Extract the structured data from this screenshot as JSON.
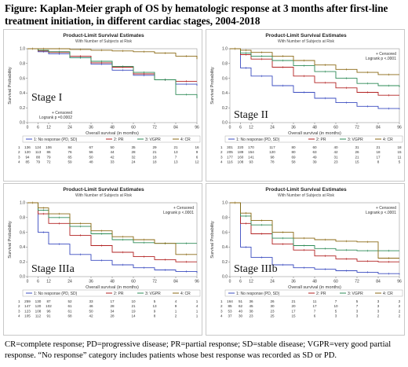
{
  "figure_title": "Figure: Kaplan-Meier graph of OS by hematologic response at 3 months after first-line treatment initiation, in different cardiac stages, 2004-2018",
  "footnote": "CR=complete response; PD=progressive disease; PR=partial response; SD=stable disease; VGPR=very good partial response. “No response” category includes patients whose best response was recorded as SD or PD.",
  "colors": {
    "no_response": "#3b4cc0",
    "pr": "#b22222",
    "vgpr": "#2e8b57",
    "cr": "#8b6914"
  },
  "chart_data": [
    {
      "type": "line",
      "stage_label": "Stage I",
      "title": "Product-Limit Survival Estimates",
      "subtitle": "With Number of Subjects at Risk",
      "xlabel": "Overall survival (in months)",
      "ylabel": "Survival Probability",
      "xticks": [
        0,
        6,
        12,
        24,
        36,
        48,
        60,
        72,
        84,
        96
      ],
      "yticks": [
        "0.0",
        "0.2",
        "0.4",
        "0.6",
        "0.8",
        "1.0"
      ],
      "xlim": [
        0,
        96
      ],
      "ylim": [
        0,
        1
      ],
      "legend_box": {
        "position": "bottom-left",
        "lines": [
          "+ Censored",
          "Logrank p =0.0002"
        ]
      },
      "series": [
        {
          "name": "1: No response (PD, SD)",
          "x": [
            0,
            6,
            12,
            24,
            36,
            48,
            60,
            72,
            84,
            96
          ],
          "y": [
            1.0,
            0.96,
            0.93,
            0.88,
            0.79,
            0.71,
            0.64,
            0.58,
            0.52,
            0.5
          ]
        },
        {
          "name": "2: PR",
          "x": [
            0,
            6,
            12,
            24,
            36,
            48,
            60,
            72,
            84,
            96
          ],
          "y": [
            1.0,
            0.97,
            0.95,
            0.9,
            0.81,
            0.75,
            0.66,
            0.58,
            0.56,
            0.56
          ]
        },
        {
          "name": "3: VGPR",
          "x": [
            0,
            6,
            12,
            24,
            36,
            48,
            60,
            72,
            84,
            96
          ],
          "y": [
            1.0,
            0.98,
            0.96,
            0.88,
            0.83,
            0.76,
            0.68,
            0.58,
            0.38,
            0.33
          ]
        },
        {
          "name": "4: CR",
          "x": [
            0,
            6,
            12,
            24,
            36,
            48,
            60,
            72,
            84,
            96
          ],
          "y": [
            1.0,
            1.0,
            1.0,
            0.99,
            0.98,
            0.97,
            0.96,
            0.94,
            0.9,
            0.86
          ]
        }
      ],
      "risk_table": [
        [
          "136",
          "124",
          "106",
          "84",
          "67",
          "50",
          "35",
          "29",
          "21",
          "16"
        ],
        [
          "120",
          "113",
          "86",
          "76",
          "56",
          "44",
          "28",
          "21",
          "13",
          "9"
        ],
        [
          "94",
          "88",
          "79",
          "65",
          "50",
          "42",
          "32",
          "18",
          "7",
          "6"
        ],
        [
          "85",
          "79",
          "72",
          "59",
          "48",
          "33",
          "24",
          "18",
          "13",
          "12"
        ]
      ]
    },
    {
      "type": "line",
      "stage_label": "Stage II",
      "title": "Product-Limit Survival Estimates",
      "subtitle": "With Number of Subjects at Risk",
      "xlabel": "Overall survival (in months)",
      "ylabel": "Survival Probability",
      "xticks": [
        0,
        6,
        12,
        24,
        36,
        48,
        60,
        72,
        84,
        96
      ],
      "yticks": [
        "0.0",
        "0.2",
        "0.4",
        "0.6",
        "0.8",
        "1.0"
      ],
      "xlim": [
        0,
        96
      ],
      "ylim": [
        0,
        1
      ],
      "legend_box": {
        "position": "top-right",
        "lines": [
          "+ Censored",
          "Logrank p <.0001"
        ]
      },
      "series": [
        {
          "name": "1: No response (PD, SD)",
          "x": [
            0,
            6,
            12,
            24,
            36,
            48,
            60,
            72,
            84,
            96
          ],
          "y": [
            1.0,
            0.74,
            0.63,
            0.5,
            0.41,
            0.33,
            0.27,
            0.22,
            0.19,
            0.18
          ]
        },
        {
          "name": "2: PR",
          "x": [
            0,
            6,
            12,
            24,
            36,
            48,
            60,
            72,
            84,
            96
          ],
          "y": [
            1.0,
            0.92,
            0.86,
            0.75,
            0.63,
            0.54,
            0.47,
            0.41,
            0.37,
            0.37
          ]
        },
        {
          "name": "3: VGPR",
          "x": [
            0,
            6,
            12,
            24,
            36,
            48,
            60,
            72,
            84,
            96
          ],
          "y": [
            1.0,
            0.94,
            0.9,
            0.84,
            0.77,
            0.69,
            0.6,
            0.53,
            0.5,
            0.48
          ]
        },
        {
          "name": "4: CR",
          "x": [
            0,
            6,
            12,
            24,
            36,
            48,
            60,
            72,
            84,
            96
          ],
          "y": [
            1.0,
            0.98,
            0.95,
            0.9,
            0.84,
            0.78,
            0.72,
            0.68,
            0.65,
            0.65
          ]
        }
      ],
      "risk_table": [
        [
          "301",
          "220",
          "170",
          "117",
          "80",
          "60",
          "40",
          "31",
          "21",
          "18"
        ],
        [
          "205",
          "189",
          "154",
          "120",
          "80",
          "63",
          "42",
          "26",
          "18",
          "15"
        ],
        [
          "177",
          "160",
          "141",
          "98",
          "69",
          "49",
          "31",
          "21",
          "17",
          "11"
        ],
        [
          "116",
          "108",
          "93",
          "78",
          "58",
          "39",
          "23",
          "15",
          "8",
          "5"
        ]
      ]
    },
    {
      "type": "line",
      "stage_label": "Stage IIIa",
      "title": "Product-Limit Survival Estimates",
      "subtitle": "With Number of Subjects at Risk",
      "xlabel": "Overall survival (in months)",
      "ylabel": "Survival Probability",
      "xticks": [
        0,
        6,
        12,
        24,
        36,
        48,
        60,
        72,
        84,
        96
      ],
      "yticks": [
        "0.0",
        "0.2",
        "0.4",
        "0.6",
        "0.8",
        "1.0"
      ],
      "xlim": [
        0,
        96
      ],
      "ylim": [
        0,
        1
      ],
      "legend_box": {
        "position": "top-right",
        "lines": [
          "+ Censored",
          "Logrank p <.0001"
        ]
      },
      "series": [
        {
          "name": "1: No response (PD, SD)",
          "x": [
            0,
            6,
            12,
            24,
            36,
            48,
            60,
            72,
            84,
            96
          ],
          "y": [
            1.0,
            0.6,
            0.44,
            0.3,
            0.22,
            0.16,
            0.12,
            0.09,
            0.07,
            0.05
          ]
        },
        {
          "name": "2: PR",
          "x": [
            0,
            6,
            12,
            24,
            36,
            48,
            60,
            72,
            84,
            96
          ],
          "y": [
            1.0,
            0.85,
            0.72,
            0.56,
            0.42,
            0.33,
            0.27,
            0.23,
            0.2,
            0.2
          ]
        },
        {
          "name": "3: VGPR",
          "x": [
            0,
            6,
            12,
            24,
            36,
            48,
            60,
            72,
            84,
            96
          ],
          "y": [
            1.0,
            0.9,
            0.8,
            0.68,
            0.58,
            0.5,
            0.46,
            0.45,
            0.45,
            0.45
          ]
        },
        {
          "name": "4: CR",
          "x": [
            0,
            6,
            12,
            24,
            36,
            48,
            60,
            72,
            84,
            96
          ],
          "y": [
            1.0,
            0.93,
            0.85,
            0.72,
            0.62,
            0.54,
            0.5,
            0.45,
            0.3,
            0.3
          ]
        }
      ],
      "risk_table": [
        [
          "259",
          "130",
          "87",
          "52",
          "33",
          "17",
          "10",
          "5",
          "4",
          "1"
        ],
        [
          "147",
          "120",
          "102",
          "61",
          "46",
          "28",
          "21",
          "13",
          "9",
          "4"
        ],
        [
          "123",
          "108",
          "96",
          "61",
          "50",
          "34",
          "19",
          "9",
          "1",
          "1"
        ],
        [
          "105",
          "112",
          "91",
          "68",
          "42",
          "28",
          "14",
          "8",
          "2",
          "1"
        ]
      ]
    },
    {
      "type": "line",
      "stage_label": "Stage IIIb",
      "title": "Product-Limit Survival Estimates",
      "subtitle": "With Number of Subjects at Risk",
      "xlabel": "Overall survival (in months)",
      "ylabel": "Survival Probability",
      "xticks": [
        0,
        6,
        12,
        24,
        36,
        48,
        60,
        72,
        84,
        96
      ],
      "yticks": [
        "0.0",
        "0.2",
        "0.4",
        "0.6",
        "0.8",
        "1.0"
      ],
      "xlim": [
        0,
        96
      ],
      "ylim": [
        0,
        1
      ],
      "legend_box": {
        "position": "top-right",
        "lines": [
          "+ Censored",
          "Logrank p <.0001"
        ]
      },
      "series": [
        {
          "name": "1: No response (PD, SD)",
          "x": [
            0,
            6,
            12,
            24,
            36,
            48,
            60,
            72,
            84,
            96
          ],
          "y": [
            1.0,
            0.4,
            0.26,
            0.16,
            0.12,
            0.1,
            0.08,
            0.06,
            0.04,
            0.03
          ]
        },
        {
          "name": "2: PR",
          "x": [
            0,
            6,
            12,
            24,
            36,
            48,
            60,
            72,
            84,
            96
          ],
          "y": [
            1.0,
            0.72,
            0.58,
            0.44,
            0.36,
            0.28,
            0.24,
            0.21,
            0.2,
            0.2
          ]
        },
        {
          "name": "3: VGPR",
          "x": [
            0,
            6,
            12,
            24,
            36,
            48,
            60,
            72,
            84,
            96
          ],
          "y": [
            1.0,
            0.82,
            0.7,
            0.52,
            0.42,
            0.38,
            0.36,
            0.35,
            0.35,
            0.35
          ]
        },
        {
          "name": "4: CR",
          "x": [
            0,
            6,
            12,
            24,
            36,
            48,
            60,
            72,
            84,
            96
          ],
          "y": [
            1.0,
            0.86,
            0.76,
            0.6,
            0.52,
            0.5,
            0.48,
            0.47,
            0.25,
            0.25
          ]
        }
      ],
      "risk_table": [
        [
          "164",
          "51",
          "36",
          "26",
          "21",
          "11",
          "7",
          "5",
          "3",
          "2"
        ],
        [
          "85",
          "62",
          "45",
          "30",
          "20",
          "17",
          "10",
          "7",
          "3",
          "2"
        ],
        [
          "53",
          "40",
          "38",
          "23",
          "17",
          "7",
          "5",
          "3",
          "3",
          "2"
        ],
        [
          "37",
          "30",
          "23",
          "25",
          "15",
          "6",
          "3",
          "3",
          "2",
          "2"
        ]
      ]
    }
  ]
}
